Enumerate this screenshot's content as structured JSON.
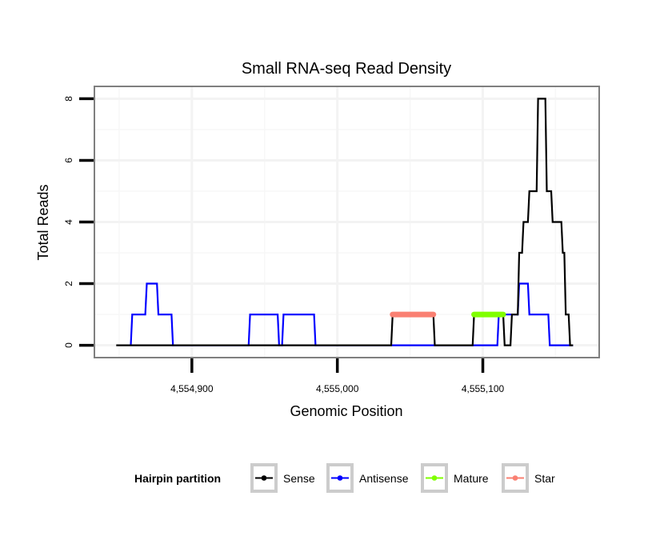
{
  "chart_data": {
    "type": "line",
    "title": "Small RNA-seq Read Density",
    "xlabel": "Genomic Position",
    "ylabel": "Total Reads",
    "xlim": [
      4554833,
      4555180
    ],
    "ylim": [
      -0.4,
      8.4
    ],
    "x_ticks": [
      {
        "value": 4554900,
        "label": "4,554,900"
      },
      {
        "value": 4555000,
        "label": "4,555,000"
      },
      {
        "value": 4555100,
        "label": "4,555,100"
      }
    ],
    "y_ticks": [
      {
        "value": 0,
        "label": "0"
      },
      {
        "value": 2,
        "label": "2"
      },
      {
        "value": 4,
        "label": "4"
      },
      {
        "value": 6,
        "label": "6"
      },
      {
        "value": 8,
        "label": "8"
      }
    ],
    "grid": true,
    "legend": {
      "title": "Hairpin partition",
      "placement": "bottom"
    },
    "series": [
      {
        "name": "Sense",
        "color": "#000000",
        "points": [
          [
            4554848,
            0
          ],
          [
            4555037,
            0
          ],
          [
            4555038,
            1
          ],
          [
            4555066,
            1
          ],
          [
            4555067,
            0
          ],
          [
            4555093,
            0
          ],
          [
            4555094,
            1
          ],
          [
            4555114,
            1
          ],
          [
            4555115,
            0
          ],
          [
            4555119,
            0
          ],
          [
            4555120,
            1
          ],
          [
            4555124,
            1
          ],
          [
            4555125,
            3
          ],
          [
            4555127,
            3
          ],
          [
            4555128,
            4
          ],
          [
            4555131,
            4
          ],
          [
            4555132,
            5
          ],
          [
            4555137,
            5
          ],
          [
            4555138,
            8
          ],
          [
            4555143,
            8
          ],
          [
            4555144,
            5
          ],
          [
            4555147,
            5
          ],
          [
            4555148,
            4
          ],
          [
            4555154,
            4
          ],
          [
            4555155,
            3
          ],
          [
            4555156,
            3
          ],
          [
            4555157,
            1
          ],
          [
            4555159,
            1
          ],
          [
            4555160,
            0
          ],
          [
            4555162,
            0
          ]
        ]
      },
      {
        "name": "Antisense",
        "color": "#0000ff",
        "points": [
          [
            4554858,
            0
          ],
          [
            4554859,
            1
          ],
          [
            4554868,
            1
          ],
          [
            4554869,
            2
          ],
          [
            4554876,
            2
          ],
          [
            4554877,
            1
          ],
          [
            4554886,
            1
          ],
          [
            4554887,
            0
          ],
          [
            4554939,
            0
          ],
          [
            4554940,
            1
          ],
          [
            4554959,
            1
          ],
          [
            4554960,
            0
          ],
          [
            4554962,
            0
          ],
          [
            4554963,
            1
          ],
          [
            4554984,
            1
          ],
          [
            4554985,
            0
          ],
          [
            4555037,
            0
          ],
          [
            4555066,
            0
          ],
          [
            4555093,
            0
          ],
          [
            4555110,
            0
          ],
          [
            4555111,
            1
          ],
          [
            4555124,
            1
          ],
          [
            4555125,
            2
          ],
          [
            4555131,
            2
          ],
          [
            4555132,
            1
          ],
          [
            4555145,
            1
          ],
          [
            4555146,
            0
          ],
          [
            4555162,
            0
          ]
        ]
      },
      {
        "name": "Mature",
        "color": "#80ff00",
        "points": [
          [
            4555094,
            1
          ],
          [
            4555114,
            1
          ]
        ]
      },
      {
        "name": "Star",
        "color": "#fa8072",
        "points": [
          [
            4555038,
            1
          ],
          [
            4555066,
            1
          ]
        ]
      }
    ]
  }
}
